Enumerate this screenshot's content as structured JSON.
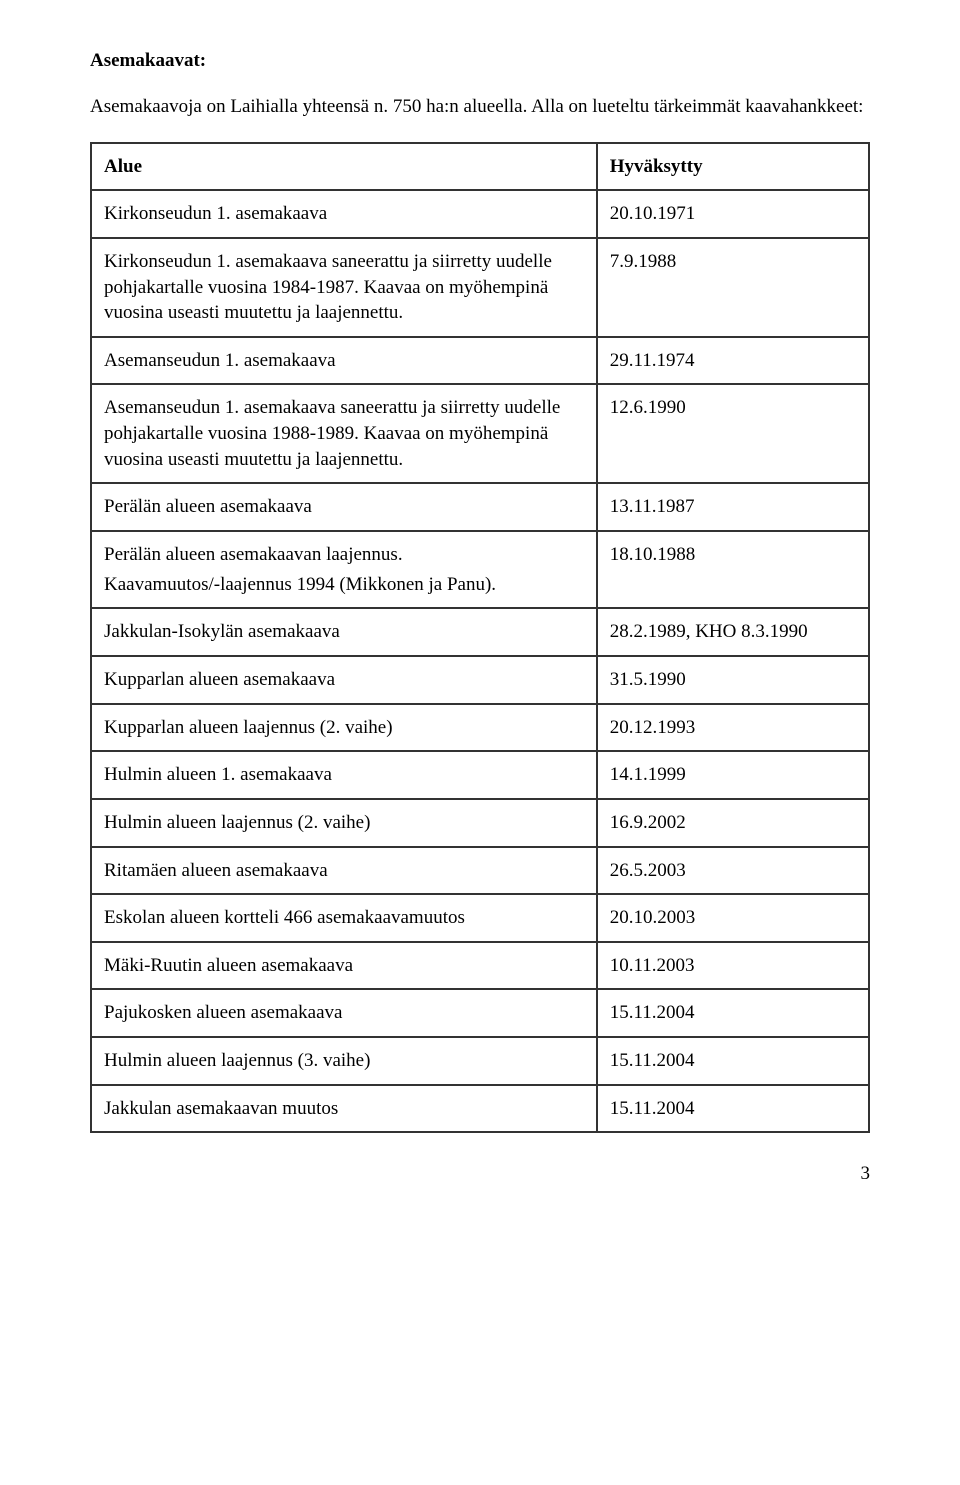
{
  "heading": "Asemakaavat:",
  "intro": "Asemakaavoja on Laihialla yhteensä n. 750 ha:n alueella. Alla on lueteltu tärkeimmät kaavahankkeet:",
  "table": {
    "header": {
      "alue": "Alue",
      "date": "Hyväksytty"
    },
    "rows": [
      {
        "alue": "Kirkonseudun 1. asemakaava",
        "date": "20.10.1971"
      },
      {
        "alue": "Kirkonseudun 1. asemakaava saneerattu ja siirretty uudelle pohjakartalle vuosina 1984-1987. Kaavaa on myöhempinä vuosina useasti muutettu ja laajennettu.",
        "date": "7.9.1988"
      },
      {
        "alue": "Asemanseudun 1. asemakaava",
        "date": "29.11.1974"
      },
      {
        "alue": "Asemanseudun 1. asemakaava saneerattu ja siirretty uudelle pohjakartalle vuosina 1988-1989. Kaavaa on myöhempinä vuosina useasti muutettu ja laajennettu.",
        "date": "12.6.1990"
      },
      {
        "alue": "Perälän alueen asemakaava",
        "date": "13.11.1987"
      },
      {
        "alue": "Perälän alueen asemakaavan laajennus.",
        "sub": "Kaavamuutos/-laajennus 1994 (Mikkonen ja Panu).",
        "date": "18.10.1988"
      },
      {
        "alue": "Jakkulan-Isokylän asemakaava",
        "date": "28.2.1989, KHO 8.3.1990"
      },
      {
        "alue": "Kupparlan alueen asemakaava",
        "date": "31.5.1990"
      },
      {
        "alue": "Kupparlan alueen laajennus (2. vaihe)",
        "date": "20.12.1993"
      },
      {
        "alue": "Hulmin alueen 1. asemakaava",
        "date": "14.1.1999"
      },
      {
        "alue": "Hulmin alueen laajennus (2. vaihe)",
        "date": "16.9.2002"
      },
      {
        "alue": "Ritamäen alueen asemakaava",
        "date": "26.5.2003"
      },
      {
        "alue": "Eskolan alueen kortteli 466 asemakaavamuutos",
        "date": "20.10.2003"
      },
      {
        "alue": "Mäki-Ruutin alueen asemakaava",
        "date": "10.11.2003"
      },
      {
        "alue": "Pajukosken alueen asemakaava",
        "date": "15.11.2004"
      },
      {
        "alue": "Hulmin alueen laajennus (3. vaihe)",
        "date": "15.11.2004"
      },
      {
        "alue": "Jakkulan asemakaavan muutos",
        "date": "15.11.2004"
      }
    ]
  },
  "page_number": "3"
}
